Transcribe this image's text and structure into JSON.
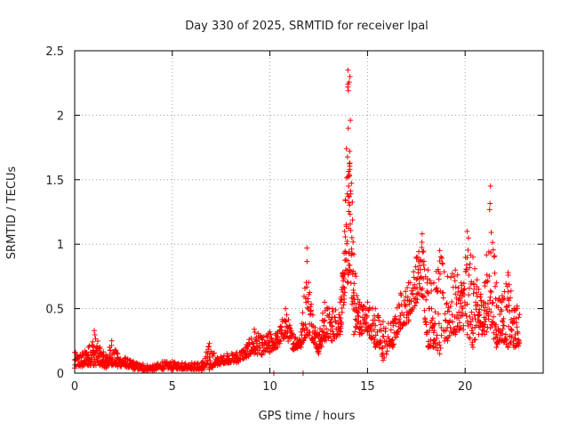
{
  "chart_data": {
    "type": "scatter",
    "title": "Day 330 of 2025, SRMTID for receiver lpal",
    "xlabel": "GPS time / hours",
    "ylabel": "SRMTID / TECUs",
    "xlim": [
      0,
      24
    ],
    "ylim": [
      0,
      2.5
    ],
    "x_ticks": [
      0,
      5,
      10,
      15,
      20
    ],
    "x_tick_labels": [
      "0",
      "5",
      "10",
      "15",
      "20"
    ],
    "y_ticks": [
      0,
      0.5,
      1,
      1.5,
      2,
      2.5
    ],
    "y_tick_labels": [
      "0",
      "0.5",
      "1",
      "1.5",
      "2",
      "2.5"
    ],
    "grid": true,
    "marker": "+",
    "color": "#ff0000",
    "series": [
      {
        "name": "SRMTID",
        "envelope": [
          [
            0.0,
            0.04,
            0.16
          ],
          [
            0.4,
            0.05,
            0.16
          ],
          [
            0.7,
            0.06,
            0.2
          ],
          [
            1.0,
            0.06,
            0.33
          ],
          [
            1.3,
            0.06,
            0.2
          ],
          [
            1.6,
            0.04,
            0.14
          ],
          [
            1.9,
            0.06,
            0.25
          ],
          [
            2.2,
            0.05,
            0.15
          ],
          [
            2.6,
            0.05,
            0.12
          ],
          [
            3.0,
            0.03,
            0.09
          ],
          [
            3.5,
            0.02,
            0.07
          ],
          [
            4.0,
            0.02,
            0.06
          ],
          [
            4.5,
            0.03,
            0.09
          ],
          [
            5.0,
            0.03,
            0.09
          ],
          [
            5.5,
            0.03,
            0.08
          ],
          [
            6.0,
            0.03,
            0.08
          ],
          [
            6.5,
            0.02,
            0.08
          ],
          [
            6.9,
            0.03,
            0.23
          ],
          [
            7.3,
            0.06,
            0.12
          ],
          [
            7.8,
            0.08,
            0.15
          ],
          [
            8.3,
            0.08,
            0.16
          ],
          [
            8.8,
            0.12,
            0.22
          ],
          [
            9.2,
            0.15,
            0.34
          ],
          [
            9.6,
            0.14,
            0.28
          ],
          [
            10.0,
            0.16,
            0.32
          ],
          [
            10.4,
            0.2,
            0.32
          ],
          [
            10.8,
            0.28,
            0.5
          ],
          [
            11.2,
            0.18,
            0.3
          ],
          [
            11.6,
            0.2,
            0.32
          ],
          [
            11.9,
            0.3,
            0.97
          ],
          [
            12.2,
            0.25,
            0.45
          ],
          [
            12.5,
            0.15,
            0.3
          ],
          [
            12.8,
            0.25,
            0.55
          ],
          [
            13.2,
            0.25,
            0.5
          ],
          [
            13.6,
            0.3,
            0.55
          ],
          [
            13.8,
            0.55,
            0.93
          ],
          [
            14.0,
            0.7,
            2.35
          ],
          [
            14.1,
            0.8,
            2.3
          ],
          [
            14.3,
            0.3,
            0.92
          ],
          [
            14.6,
            0.3,
            0.55
          ],
          [
            15.0,
            0.32,
            0.55
          ],
          [
            15.4,
            0.2,
            0.5
          ],
          [
            15.8,
            0.1,
            0.4
          ],
          [
            16.3,
            0.2,
            0.4
          ],
          [
            16.7,
            0.35,
            0.62
          ],
          [
            17.1,
            0.4,
            0.7
          ],
          [
            17.5,
            0.55,
            0.9
          ],
          [
            17.8,
            0.6,
            1.08
          ],
          [
            18.1,
            0.2,
            0.8
          ],
          [
            18.4,
            0.2,
            0.7
          ],
          [
            18.7,
            0.15,
            0.95
          ],
          [
            19.1,
            0.25,
            0.75
          ],
          [
            19.5,
            0.3,
            0.8
          ],
          [
            19.8,
            0.35,
            0.7
          ],
          [
            20.1,
            0.3,
            1.1
          ],
          [
            20.4,
            0.2,
            0.9
          ],
          [
            20.7,
            0.3,
            0.65
          ],
          [
            21.0,
            0.3,
            0.7
          ],
          [
            21.3,
            0.35,
            1.45
          ],
          [
            21.6,
            0.2,
            0.7
          ],
          [
            21.9,
            0.25,
            0.6
          ],
          [
            22.2,
            0.2,
            0.78
          ],
          [
            22.5,
            0.2,
            0.5
          ],
          [
            22.8,
            0.2,
            0.57
          ]
        ],
        "ground_points": [
          [
            10.2,
            0.0
          ],
          [
            11.7,
            0.0
          ]
        ]
      }
    ]
  }
}
